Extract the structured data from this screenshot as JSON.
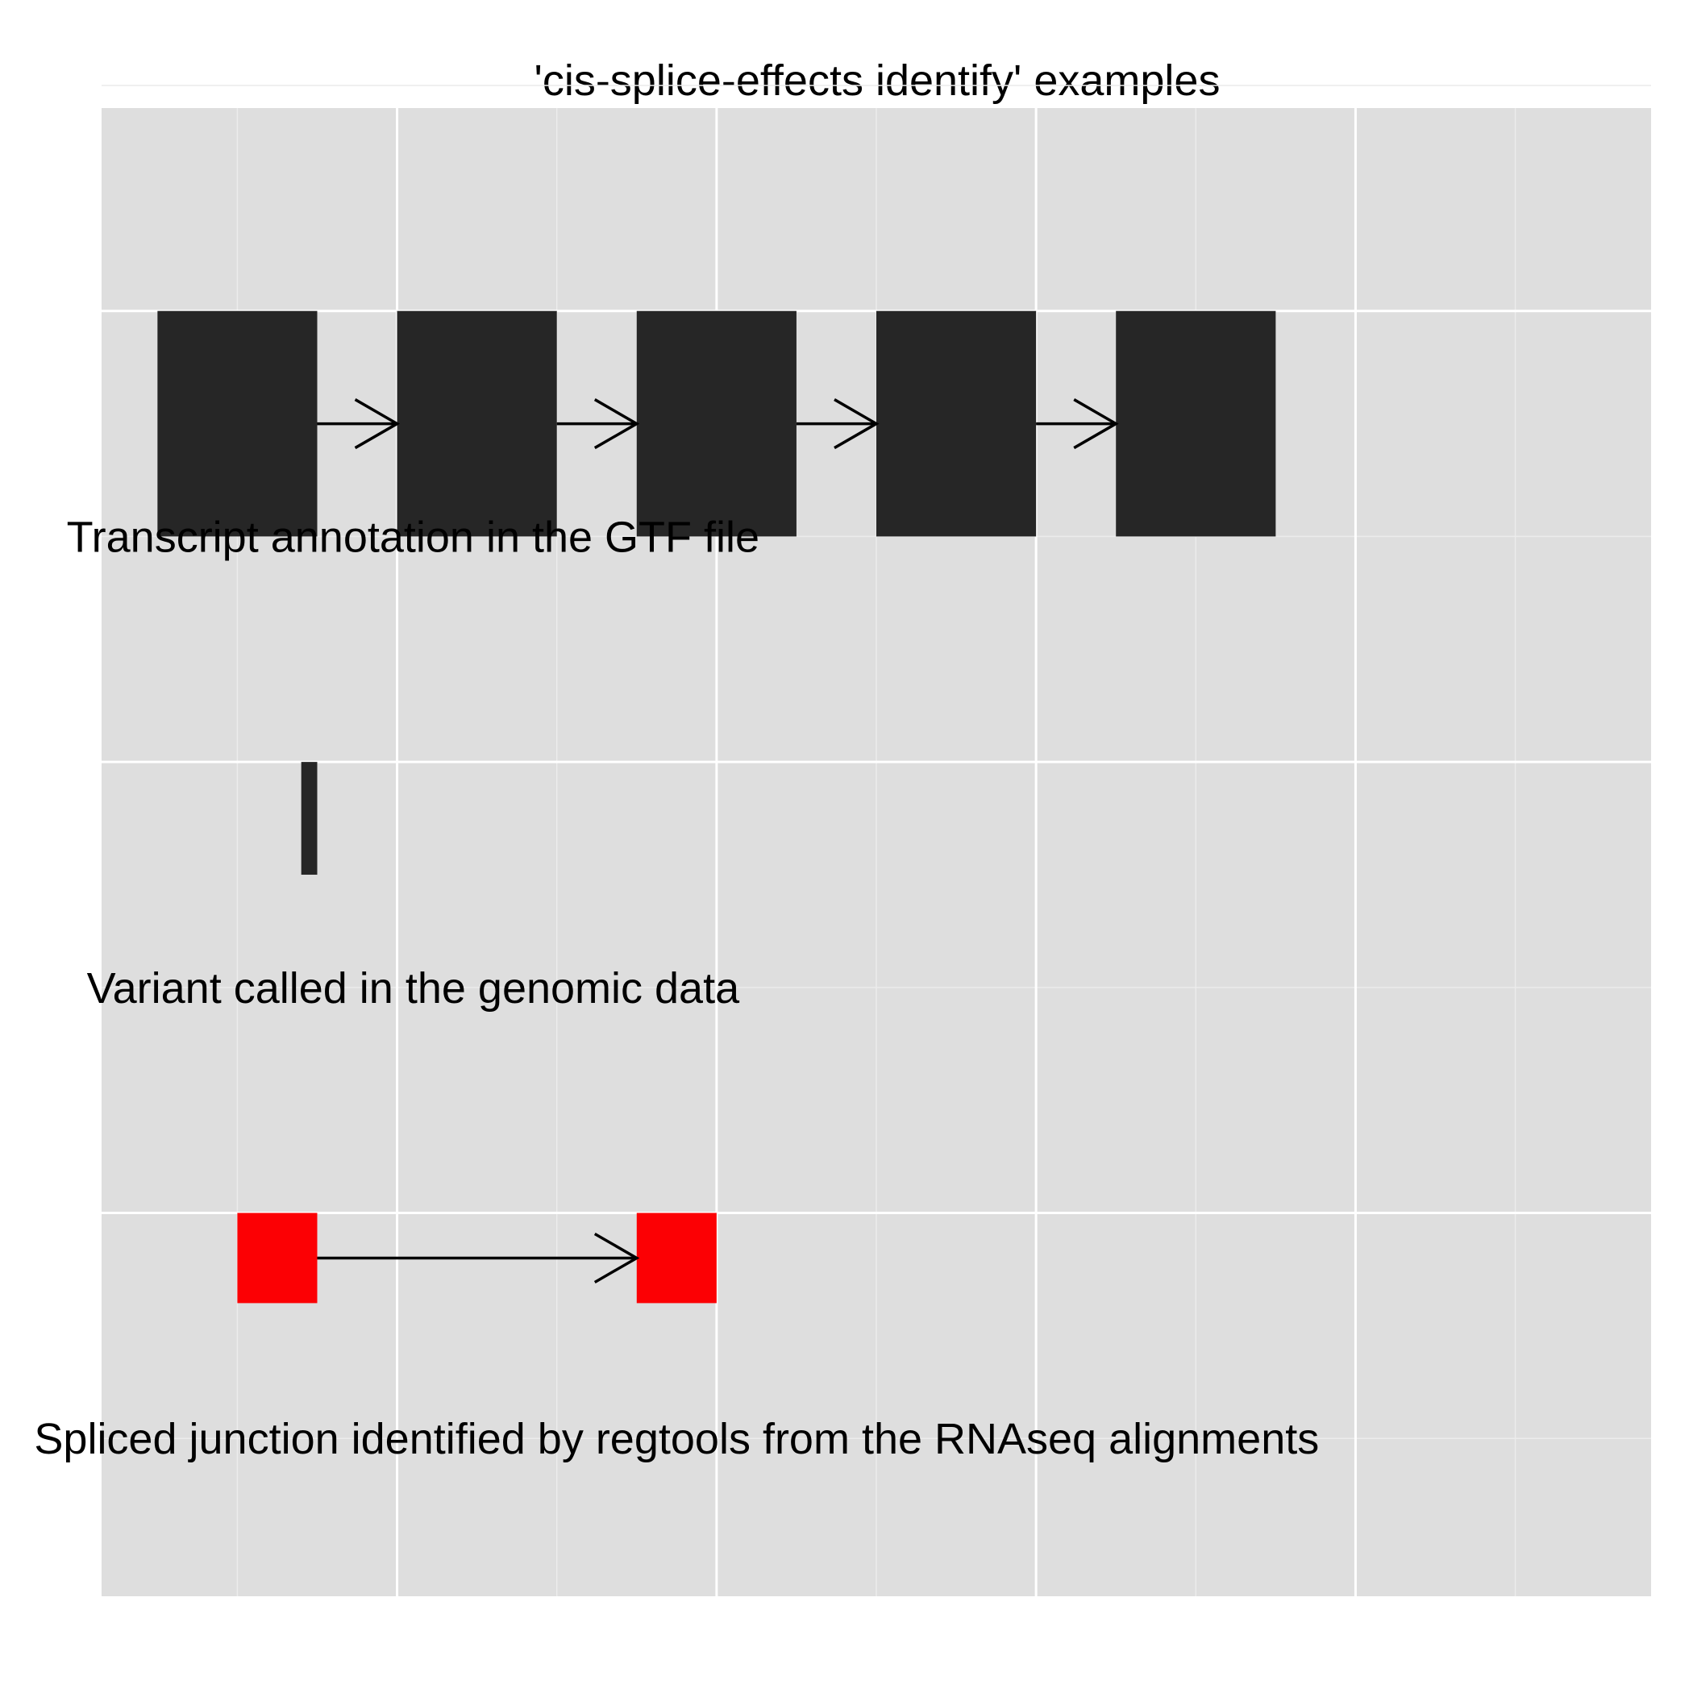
{
  "title": "'cis-splice-effects identify' examples",
  "colors": {
    "panel_background": "#dedede",
    "grid_major": "#ffffff",
    "grid_minor": "#ececec",
    "exon": "#262626",
    "variant": "#262626",
    "junction_block": "#fc0004",
    "arrow": "#000000"
  },
  "chart_data": {
    "type": "diagram",
    "x_grid_major": [
      0.2,
      0.4,
      0.6,
      0.8
    ],
    "x_grid_minor": [
      0.1,
      0.3,
      0.5,
      0.7,
      0.9
    ],
    "y_grid_major": [
      1.0,
      2.0,
      3.0
    ],
    "y_grid_minor": [
      0.5,
      1.5,
      2.5,
      3.5
    ],
    "xlim": [
      0.015,
      0.985
    ],
    "ylim": [
      0.15,
      3.45
    ],
    "tracks": [
      {
        "label": "Transcript annotation in the GTF file",
        "label_x": 0.21,
        "label_y": 2.5,
        "blocks": [
          {
            "start": 0.05,
            "end": 0.15,
            "ymin": 2.5,
            "ymax": 3.0
          },
          {
            "start": 0.2,
            "end": 0.3,
            "ymin": 2.5,
            "ymax": 3.0
          },
          {
            "start": 0.35,
            "end": 0.45,
            "ymin": 2.5,
            "ymax": 3.0
          },
          {
            "start": 0.5,
            "end": 0.6,
            "ymin": 2.5,
            "ymax": 3.0
          },
          {
            "start": 0.65,
            "end": 0.75,
            "ymin": 2.5,
            "ymax": 3.0
          }
        ],
        "connections": [
          {
            "from": 0.15,
            "to": 0.2,
            "y": 2.75
          },
          {
            "from": 0.3,
            "to": 0.35,
            "y": 2.75
          },
          {
            "from": 0.45,
            "to": 0.5,
            "y": 2.75
          },
          {
            "from": 0.6,
            "to": 0.65,
            "y": 2.75
          }
        ]
      },
      {
        "label": "Variant called in the genomic data",
        "label_x": 0.21,
        "label_y": 1.5,
        "blocks": [
          {
            "start": 0.14,
            "end": 0.15,
            "ymin": 1.75,
            "ymax": 2.0
          }
        ],
        "connections": []
      },
      {
        "label": "Spliced junction identified by regtools from the RNAseq alignments",
        "label_x": 0.375,
        "label_y": 0.5,
        "blocks": [
          {
            "start": 0.1,
            "end": 0.15,
            "ymin": 0.8,
            "ymax": 1.0
          },
          {
            "start": 0.35,
            "end": 0.4,
            "ymin": 0.8,
            "ymax": 1.0
          }
        ],
        "connections": [
          {
            "from": 0.15,
            "to": 0.35,
            "y": 0.9
          }
        ]
      }
    ]
  }
}
